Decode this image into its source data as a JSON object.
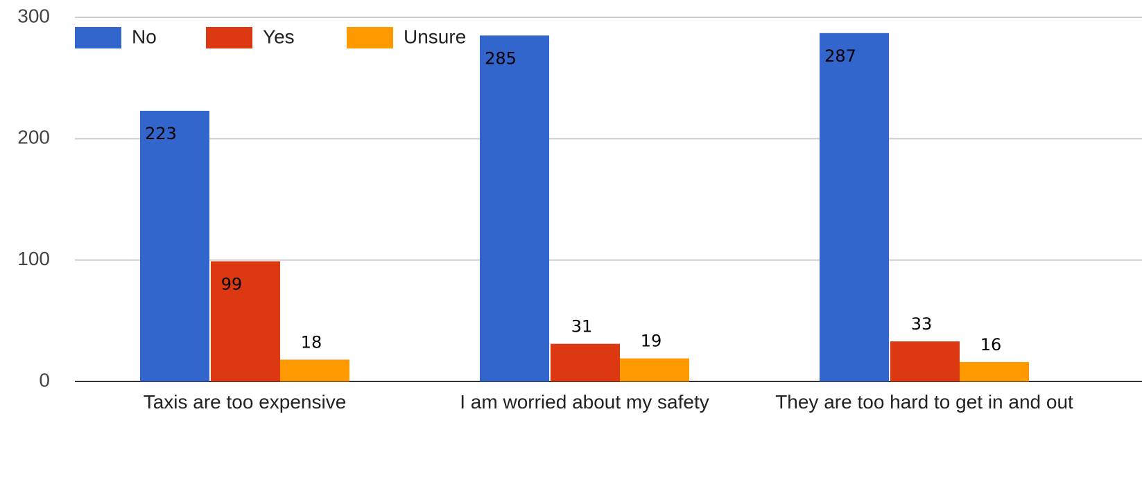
{
  "chart_data": {
    "type": "bar",
    "categories": [
      "Taxis are too expensive",
      "I am worried about my safety",
      "They are too hard to get in and out"
    ],
    "series": [
      {
        "name": "No",
        "color": "#3366cc",
        "values": [
          223,
          285,
          287
        ]
      },
      {
        "name": "Yes",
        "color": "#dc3912",
        "values": [
          99,
          31,
          33
        ]
      },
      {
        "name": "Unsure",
        "color": "#ff9900",
        "values": [
          18,
          19,
          16
        ]
      }
    ],
    "ylim": [
      0,
      300
    ],
    "yticks": [
      0,
      100,
      200,
      300
    ],
    "grid": true,
    "legend": "top-left"
  }
}
